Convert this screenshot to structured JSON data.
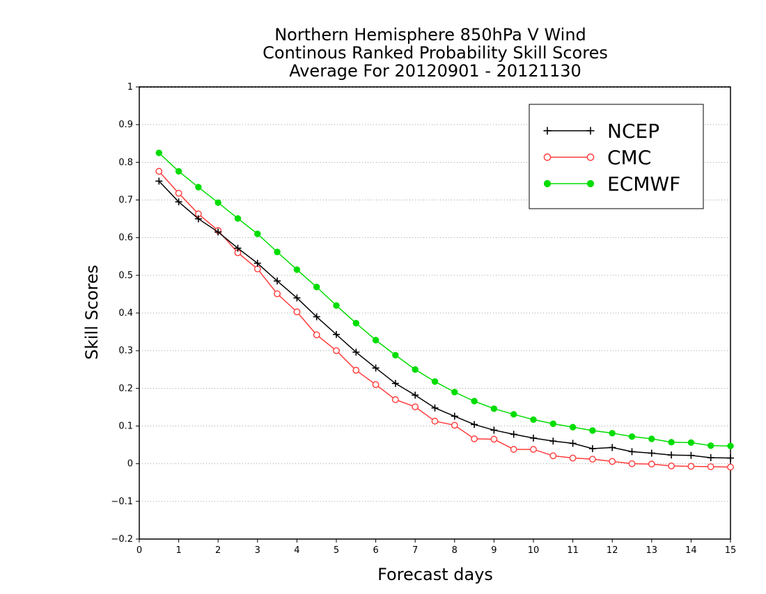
{
  "chart_data": {
    "type": "line",
    "title": [
      "Northern Hemisphere 850hPa V Wind",
      "Continous Ranked Probability Skill Scores",
      "Average For 20120901 - 20121130"
    ],
    "xlabel": "Forecast days",
    "ylabel": "Skill Scores",
    "xlim": [
      0,
      15
    ],
    "ylim": [
      -0.2,
      1
    ],
    "x_ticks": [
      0,
      1,
      2,
      3,
      4,
      5,
      6,
      7,
      8,
      9,
      10,
      11,
      12,
      13,
      14,
      15
    ],
    "y_ticks": [
      -0.2,
      -0.1,
      0,
      0.1,
      0.2,
      0.3,
      0.4,
      0.5,
      0.6,
      0.7,
      0.8,
      0.9,
      1
    ],
    "y_tick_labels": [
      "−0.2",
      "−0.1",
      "0",
      "0.1",
      "0.2",
      "0.3",
      "0.4",
      "0.5",
      "0.6",
      "0.7",
      "0.8",
      "0.9",
      "1"
    ],
    "grid": "horizontal-dotted",
    "legend_position": "top-right",
    "x": [
      0.5,
      1,
      1.5,
      2,
      2.5,
      3,
      3.5,
      4,
      4.5,
      5,
      5.5,
      6,
      6.5,
      7,
      7.5,
      8,
      8.5,
      9,
      9.5,
      10,
      10.5,
      11,
      11.5,
      12,
      12.5,
      13,
      13.5,
      14,
      14.5,
      15
    ],
    "series": [
      {
        "name": "NCEP",
        "color": "#000000",
        "marker": "plus",
        "values": [
          0.75,
          0.695,
          0.65,
          0.615,
          0.572,
          0.532,
          0.485,
          0.44,
          0.39,
          0.343,
          0.296,
          0.254,
          0.213,
          0.182,
          0.148,
          0.126,
          0.104,
          0.089,
          0.078,
          0.068,
          0.06,
          0.054,
          0.04,
          0.043,
          0.032,
          0.028,
          0.023,
          0.022,
          0.016,
          0.015
        ]
      },
      {
        "name": "CMC",
        "color": "#ff3b3b",
        "marker": "open-circle",
        "values": [
          0.776,
          0.718,
          0.663,
          0.619,
          0.56,
          0.517,
          0.451,
          0.403,
          0.342,
          0.3,
          0.248,
          0.21,
          0.17,
          0.151,
          0.113,
          0.102,
          0.066,
          0.065,
          0.038,
          0.038,
          0.021,
          0.015,
          0.012,
          0.006,
          0.0,
          -0.001,
          -0.006,
          -0.007,
          -0.008,
          -0.009
        ]
      },
      {
        "name": "ECMWF",
        "color": "#00dd00",
        "marker": "filled-circle",
        "values": [
          0.825,
          0.776,
          0.734,
          0.693,
          0.651,
          0.61,
          0.562,
          0.515,
          0.469,
          0.42,
          0.373,
          0.328,
          0.288,
          0.25,
          0.218,
          0.19,
          0.166,
          0.146,
          0.131,
          0.117,
          0.106,
          0.097,
          0.088,
          0.081,
          0.072,
          0.066,
          0.057,
          0.056,
          0.048,
          0.047
        ]
      }
    ]
  }
}
